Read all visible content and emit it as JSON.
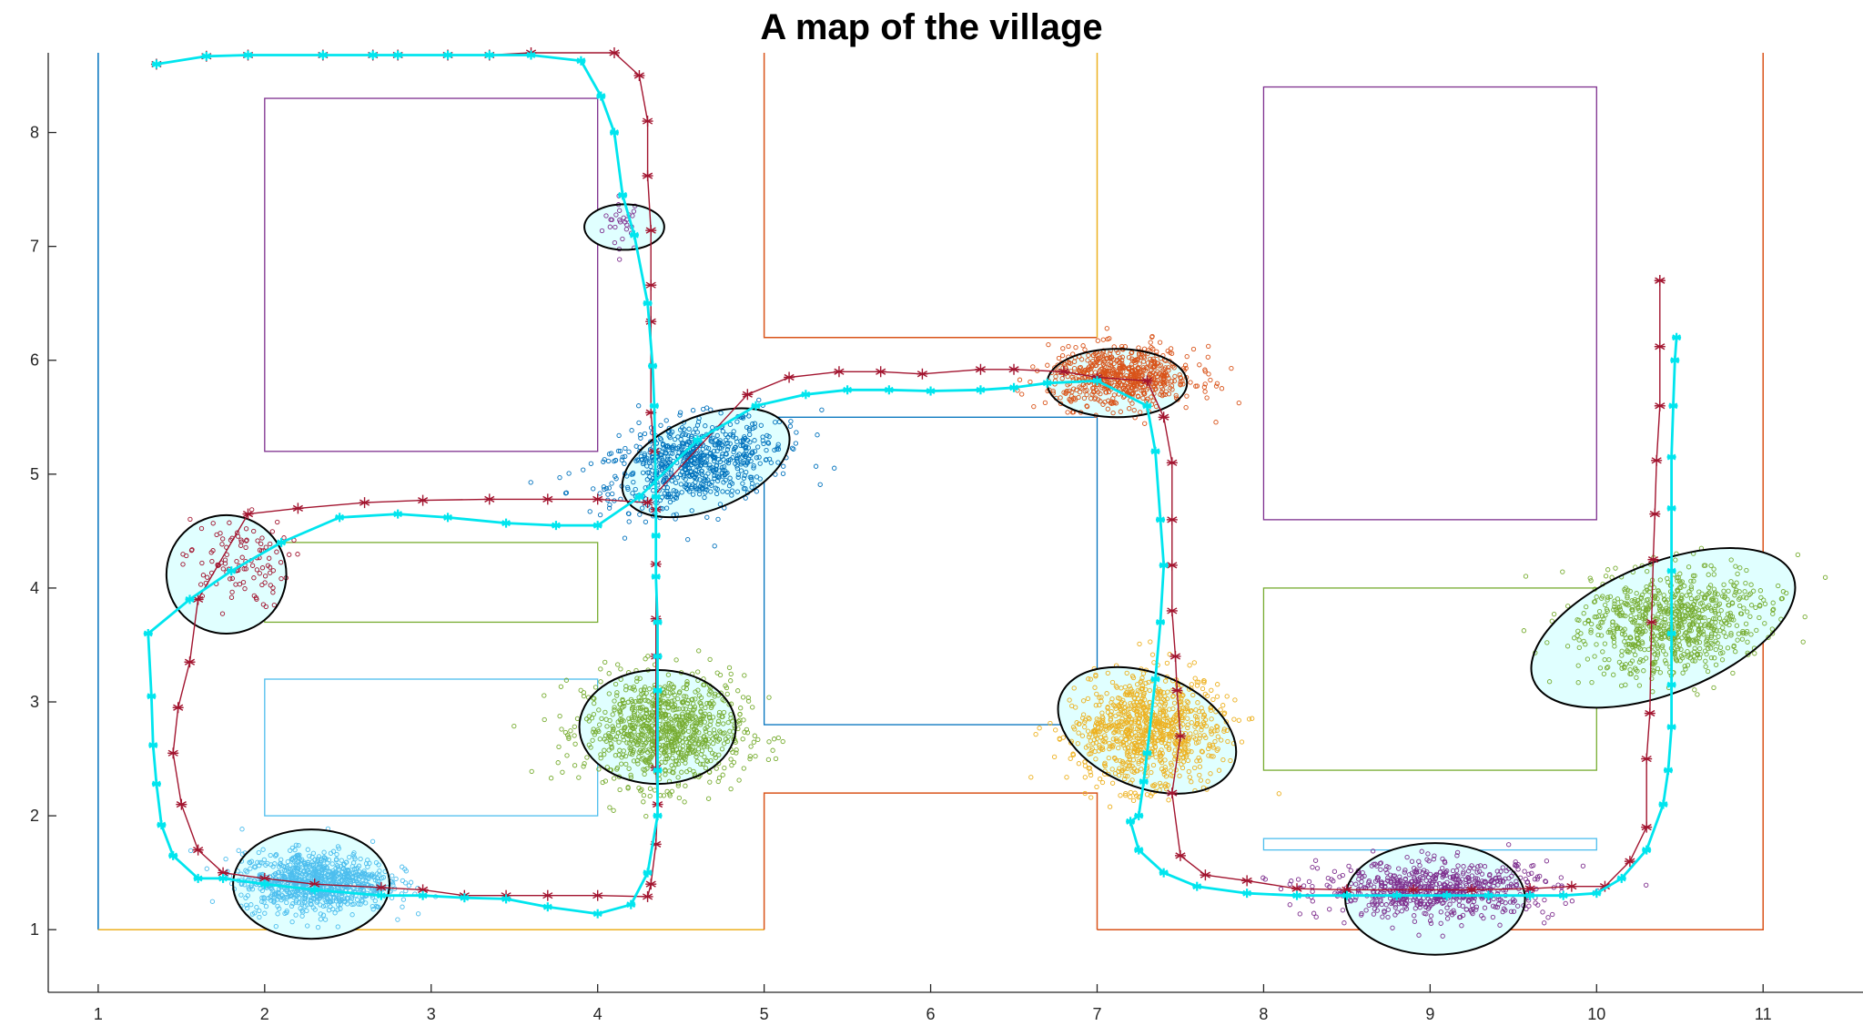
{
  "chart_data": {
    "type": "scatter",
    "title": "A map of the village",
    "xlabel": "",
    "ylabel": "",
    "xlim": [
      0.7,
      11.6
    ],
    "ylim": [
      0.45,
      8.7
    ],
    "xticks": [
      1,
      2,
      3,
      4,
      5,
      6,
      7,
      8,
      9,
      10,
      11
    ],
    "yticks": [
      1,
      2,
      3,
      4,
      5,
      6,
      7,
      8
    ],
    "grid": false,
    "colors": {
      "axis": "#262626",
      "true_path": "#A2142F",
      "estimated_path": "#00E5EE",
      "ellipse_fill": "#E0FFFF",
      "ellipse_edge": "#000000"
    },
    "buildings": [
      {
        "color": "#7E2F8E",
        "x0": 2,
        "y0": 5.2,
        "x1": 4,
        "y1": 8.3
      },
      {
        "color": "#77AC30",
        "x0": 2,
        "y0": 3.7,
        "x1": 4,
        "y1": 4.4
      },
      {
        "color": "#4DBEEE",
        "x0": 2,
        "y0": 2.0,
        "x1": 4,
        "y1": 3.2
      },
      {
        "color": "#0072BD",
        "x0": 5,
        "y0": 2.8,
        "x1": 7,
        "y1": 5.5
      },
      {
        "color": "#7E2F8E",
        "x0": 8,
        "y0": 4.6,
        "x1": 10,
        "y1": 8.4
      },
      {
        "color": "#77AC30",
        "x0": 8,
        "y0": 2.4,
        "x1": 10,
        "y1": 4.0
      },
      {
        "color": "#4DBEEE",
        "x0": 8,
        "y0": 1.7,
        "x1": 10,
        "y1": 1.8
      }
    ],
    "walls": [
      {
        "color": "#0072BD",
        "x": [
          1,
          1
        ],
        "y": [
          8.7,
          1
        ]
      },
      {
        "color": "#EDB120",
        "x": [
          1,
          5
        ],
        "y": [
          1,
          1
        ]
      },
      {
        "color": "#D95319",
        "x": [
          5,
          5,
          7,
          7
        ],
        "y": [
          1,
          2.2,
          2.2,
          1
        ]
      },
      {
        "color": "#D95319",
        "x": [
          7,
          11,
          11
        ],
        "y": [
          1,
          1,
          8.7
        ]
      },
      {
        "color": "#D95319",
        "x": [
          5,
          5,
          7
        ],
        "y": [
          8.7,
          6.2,
          6.2
        ]
      },
      {
        "color": "#EDB120",
        "x": [
          7,
          7
        ],
        "y": [
          6.2,
          8.7
        ]
      }
    ],
    "series": [
      {
        "name": "",
        "role": "true-path",
        "color": "#A2142F",
        "marker": "star",
        "x": [
          1.35,
          1.65,
          1.9,
          2.35,
          2.65,
          2.8,
          3.1,
          3.35,
          3.6,
          4.1,
          4.25,
          4.3,
          4.3,
          4.32,
          4.32,
          4.32,
          4.32,
          4.34,
          4.35,
          4.35,
          4.35,
          4.35,
          4.35,
          4.36,
          4.35,
          4.32,
          4.3,
          4.0,
          3.7,
          3.45,
          3.2,
          2.95,
          2.7,
          2.3,
          2.0,
          1.75,
          1.6,
          1.5,
          1.45,
          1.48,
          1.55,
          1.6,
          1.9,
          2.2,
          2.6,
          2.95,
          3.35,
          3.7,
          4.0,
          4.3,
          4.9,
          5.15,
          5.45,
          5.7,
          5.95,
          6.3,
          6.5,
          6.8,
          7.0,
          7.3,
          7.4,
          7.45,
          7.45,
          7.45,
          7.45,
          7.47,
          7.48,
          7.5,
          7.45,
          7.5,
          7.65,
          7.9,
          8.2,
          8.5,
          8.9,
          9.25,
          9.6,
          9.85,
          10.05,
          10.2,
          10.3,
          10.3,
          10.32,
          10.33,
          10.34,
          10.35,
          10.36,
          10.38,
          10.38,
          10.38,
          10.38
        ],
        "y": [
          8.6,
          8.67,
          8.68,
          8.68,
          8.68,
          8.68,
          8.68,
          8.68,
          8.7,
          8.7,
          8.5,
          8.1,
          7.62,
          7.14,
          6.66,
          6.34,
          5.54,
          5.2,
          4.69,
          4.21,
          3.73,
          3.4,
          2.42,
          2.1,
          1.75,
          1.4,
          1.29,
          1.3,
          1.3,
          1.3,
          1.3,
          1.35,
          1.37,
          1.4,
          1.45,
          1.5,
          1.7,
          2.1,
          2.55,
          2.95,
          3.35,
          3.9,
          4.65,
          4.7,
          4.75,
          4.77,
          4.78,
          4.78,
          4.78,
          4.75,
          5.7,
          5.85,
          5.9,
          5.9,
          5.88,
          5.92,
          5.92,
          5.9,
          5.85,
          5.82,
          5.5,
          5.1,
          4.6,
          4.2,
          3.8,
          3.4,
          3.1,
          2.7,
          2.2,
          1.65,
          1.48,
          1.43,
          1.36,
          1.35,
          1.35,
          1.35,
          1.36,
          1.38,
          1.38,
          1.6,
          1.9,
          2.5,
          2.9,
          3.7,
          4.25,
          4.65,
          5.12,
          5.6,
          6.12,
          6.7,
          6.7
        ]
      },
      {
        "name": "",
        "role": "estimated-path",
        "color": "#00E5EE",
        "marker": "star",
        "x": [
          1.35,
          1.65,
          1.9,
          2.35,
          2.65,
          2.8,
          3.1,
          3.35,
          3.6,
          3.9,
          4.02,
          4.1,
          4.15,
          4.22,
          4.3,
          4.33,
          4.34,
          4.35,
          4.35,
          4.35,
          4.36,
          4.36,
          4.36,
          4.36,
          4.36,
          4.3,
          4.2,
          4.0,
          3.7,
          3.45,
          3.2,
          2.95,
          2.7,
          2.3,
          2.0,
          1.75,
          1.6,
          1.45,
          1.38,
          1.35,
          1.33,
          1.32,
          1.3,
          1.55,
          1.8,
          2.1,
          2.45,
          2.8,
          3.1,
          3.45,
          3.75,
          4.0,
          4.25,
          4.6,
          4.95,
          5.25,
          5.5,
          5.75,
          6.0,
          6.3,
          6.5,
          6.7,
          7.0,
          7.3,
          7.35,
          7.38,
          7.4,
          7.38,
          7.35,
          7.3,
          7.28,
          7.25,
          7.2,
          7.25,
          7.4,
          7.6,
          7.9,
          8.2,
          8.5,
          8.8,
          9.1,
          9.35,
          9.6,
          9.8,
          10.0,
          10.15,
          10.3,
          10.4,
          10.43,
          10.45,
          10.45,
          10.45,
          10.45,
          10.45,
          10.45,
          10.46,
          10.47,
          10.48
        ],
        "y": [
          8.6,
          8.67,
          8.68,
          8.68,
          8.68,
          8.68,
          8.68,
          8.68,
          8.68,
          8.63,
          8.32,
          8.0,
          7.45,
          7.1,
          6.5,
          5.95,
          5.6,
          4.8,
          4.46,
          4.1,
          3.7,
          3.4,
          3.1,
          2.4,
          2.0,
          1.5,
          1.22,
          1.14,
          1.2,
          1.27,
          1.28,
          1.3,
          1.3,
          1.35,
          1.4,
          1.45,
          1.45,
          1.65,
          1.92,
          2.28,
          2.62,
          3.05,
          3.6,
          3.9,
          4.15,
          4.4,
          4.62,
          4.65,
          4.62,
          4.57,
          4.55,
          4.55,
          4.8,
          5.3,
          5.6,
          5.7,
          5.74,
          5.74,
          5.73,
          5.74,
          5.76,
          5.8,
          5.82,
          5.6,
          5.2,
          4.6,
          4.2,
          3.7,
          3.2,
          2.55,
          2.3,
          2.0,
          1.95,
          1.7,
          1.5,
          1.38,
          1.32,
          1.3,
          1.3,
          1.3,
          1.3,
          1.3,
          1.3,
          1.3,
          1.32,
          1.45,
          1.7,
          2.1,
          2.4,
          2.78,
          3.15,
          3.6,
          4.15,
          4.7,
          5.15,
          5.6,
          6.0,
          6.2
        ]
      }
    ],
    "clusters": [
      {
        "color": "#7E2F8E",
        "cx": 4.15,
        "cy": 7.2,
        "spread_x": 0.06,
        "spread_y": 0.12,
        "n": 28,
        "ellipse": {
          "cx": 4.16,
          "cy": 7.17,
          "rx": 0.24,
          "ry": 0.2,
          "angle": 0
        }
      },
      {
        "color": "#0072BD",
        "cx": 4.58,
        "cy": 5.1,
        "spread_x": 0.28,
        "spread_y": 0.18,
        "n": 700,
        "ellipse": {
          "cx": 4.65,
          "cy": 5.1,
          "rx": 0.53,
          "ry": 0.41,
          "angle": 22
        }
      },
      {
        "color": "#A2142F",
        "cx": 1.82,
        "cy": 4.22,
        "spread_x": 0.16,
        "spread_y": 0.2,
        "n": 110,
        "ellipse": {
          "cx": 1.77,
          "cy": 4.12,
          "rx": 0.36,
          "ry": 0.52,
          "angle": 0
        }
      },
      {
        "color": "#77AC30",
        "cx": 4.4,
        "cy": 2.75,
        "spread_x": 0.24,
        "spread_y": 0.24,
        "n": 900,
        "ellipse": {
          "cx": 4.36,
          "cy": 2.78,
          "rx": 0.47,
          "ry": 0.5,
          "angle": 0
        }
      },
      {
        "color": "#4DBEEE",
        "cx": 2.3,
        "cy": 1.42,
        "spread_x": 0.22,
        "spread_y": 0.13,
        "n": 900,
        "ellipse": {
          "cx": 2.28,
          "cy": 1.4,
          "rx": 0.47,
          "ry": 0.48,
          "angle": 0
        }
      },
      {
        "color": "#D95319",
        "cx": 7.15,
        "cy": 5.85,
        "spread_x": 0.22,
        "spread_y": 0.13,
        "n": 650,
        "ellipse": {
          "cx": 7.12,
          "cy": 5.8,
          "rx": 0.42,
          "ry": 0.3,
          "angle": 0
        }
      },
      {
        "color": "#EDB120",
        "cx": 7.3,
        "cy": 2.75,
        "spread_x": 0.22,
        "spread_y": 0.24,
        "n": 900,
        "ellipse": {
          "cx": 7.3,
          "cy": 2.75,
          "rx": 0.56,
          "ry": 0.5,
          "angle": -22
        }
      },
      {
        "color": "#7E2F8E",
        "cx": 9.05,
        "cy": 1.35,
        "spread_x": 0.35,
        "spread_y": 0.12,
        "n": 700,
        "ellipse": {
          "cx": 9.03,
          "cy": 1.27,
          "rx": 0.54,
          "ry": 0.49,
          "angle": 0
        }
      },
      {
        "color": "#77AC30",
        "cx": 10.45,
        "cy": 3.7,
        "spread_x": 0.28,
        "spread_y": 0.22,
        "n": 800,
        "ellipse": {
          "cx": 10.4,
          "cy": 3.65,
          "rx": 0.84,
          "ry": 0.57,
          "angle": 22
        }
      }
    ]
  }
}
